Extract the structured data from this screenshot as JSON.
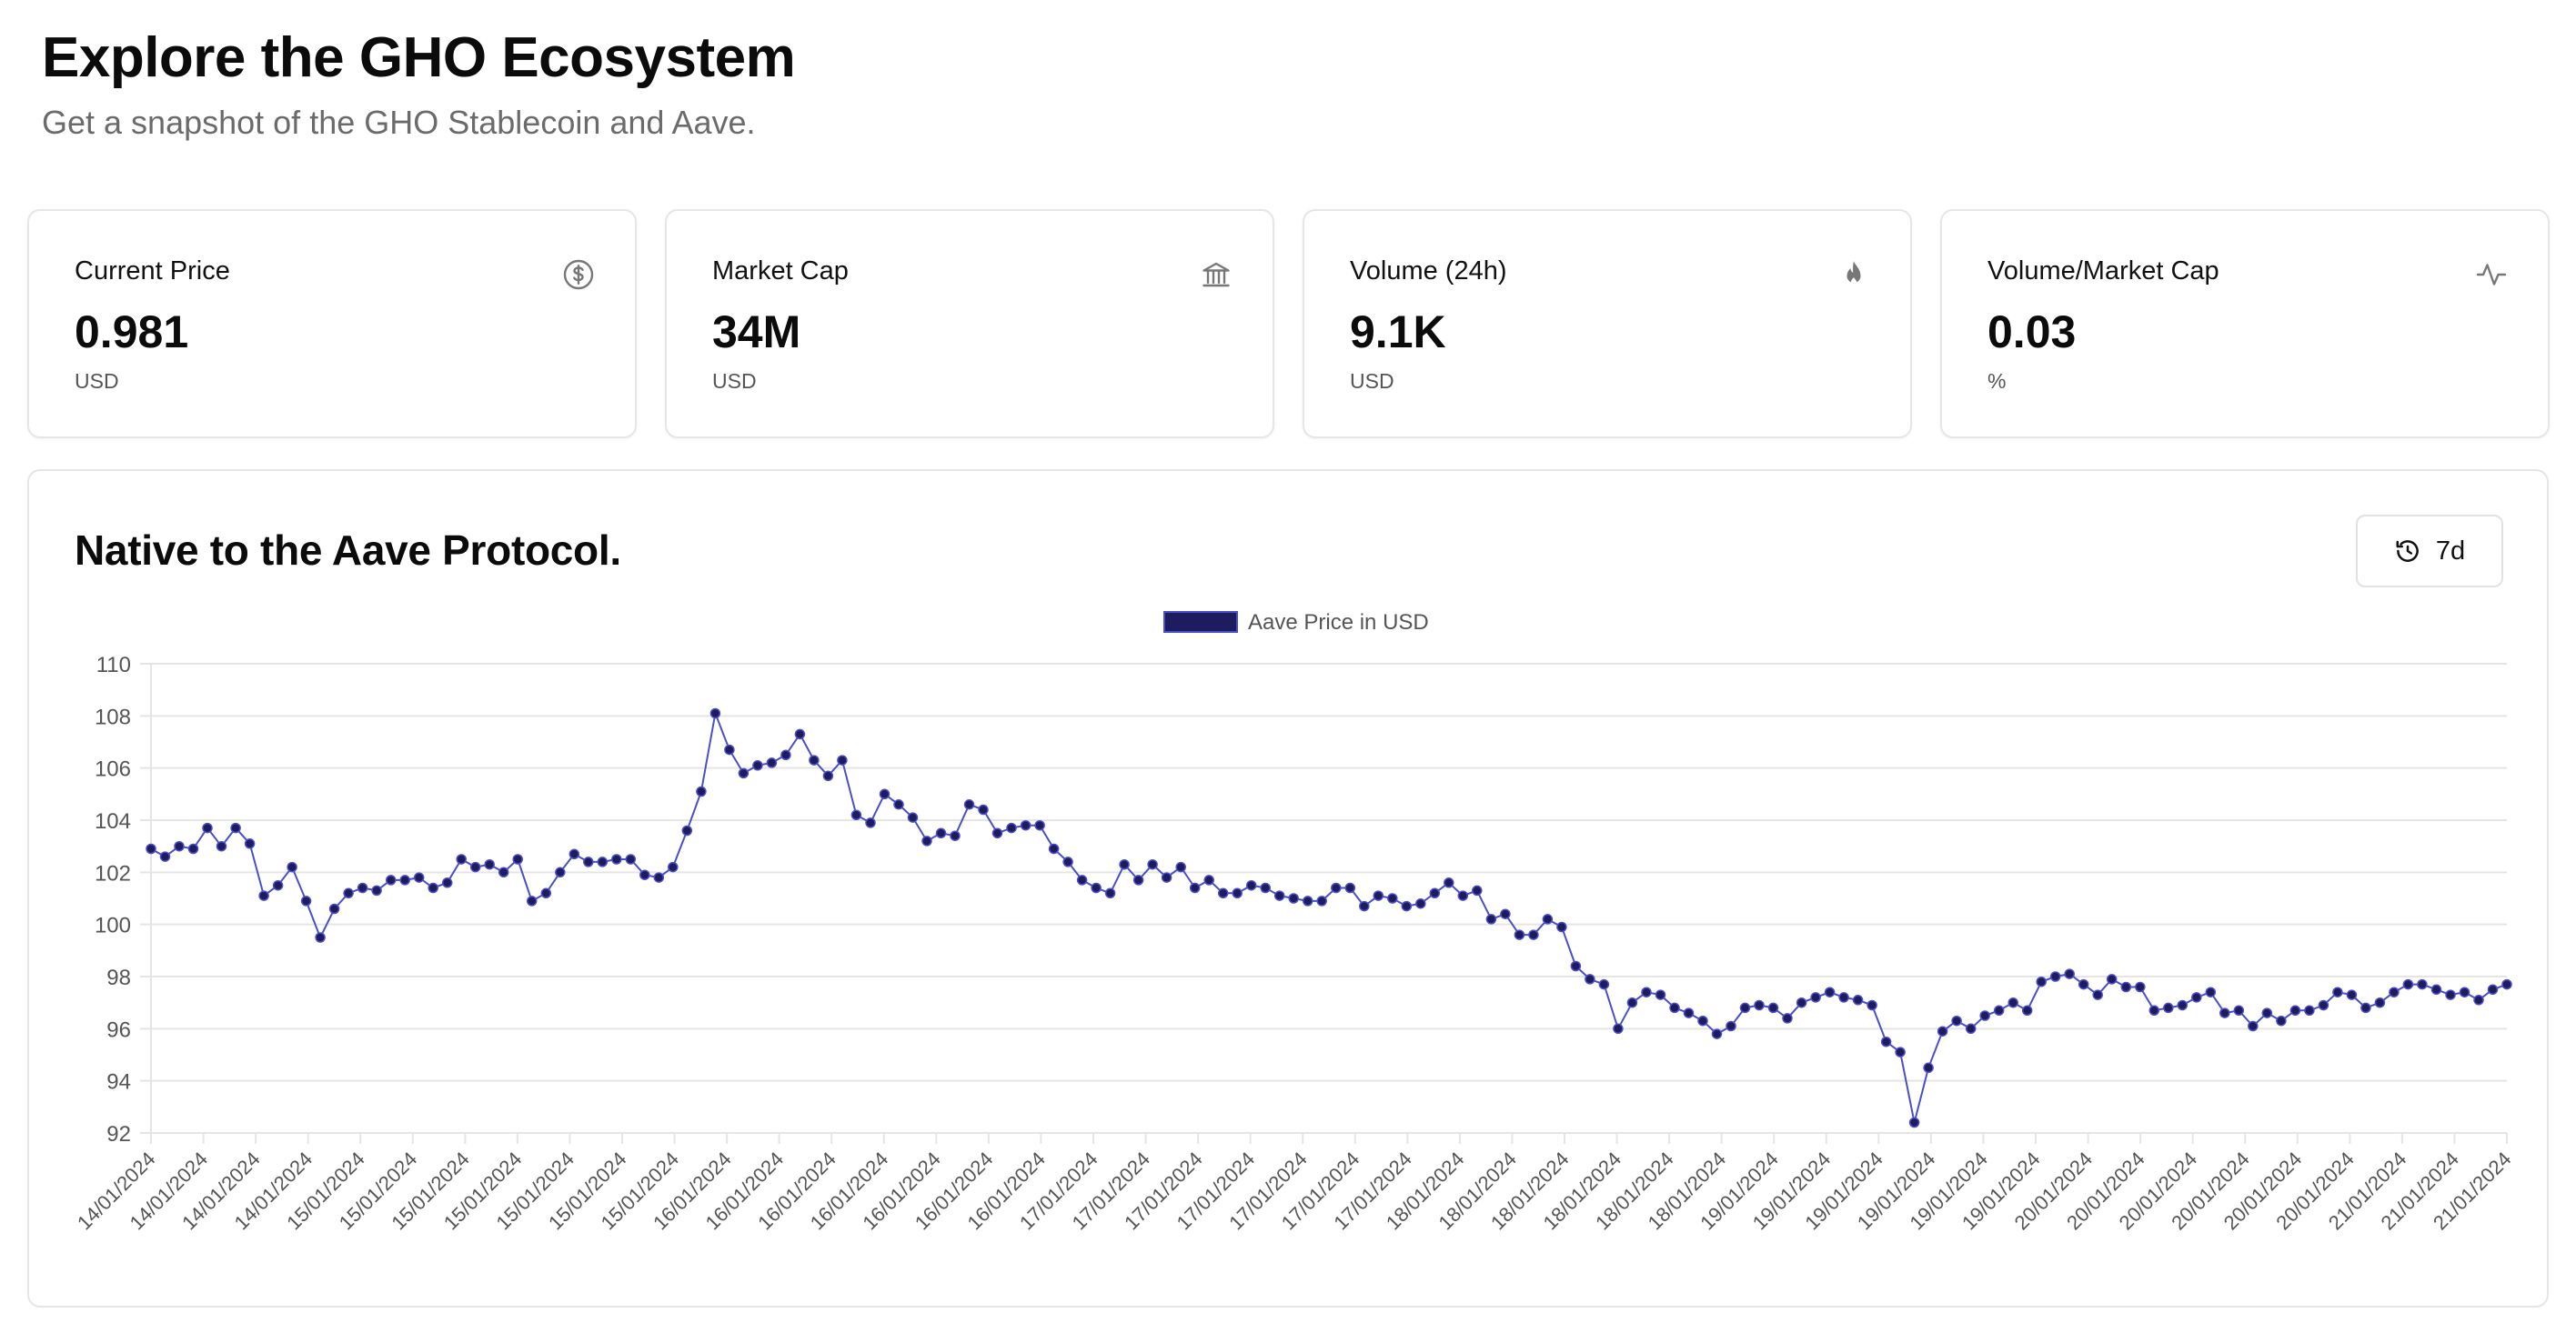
{
  "header": {
    "title": "Explore the GHO Ecosystem",
    "subtitle": "Get a snapshot of the GHO Stablecoin and Aave."
  },
  "stats": [
    {
      "label": "Current Price",
      "value": "0.981",
      "unit": "USD",
      "icon": "dollar-circle-icon"
    },
    {
      "label": "Market Cap",
      "value": "34M",
      "unit": "USD",
      "icon": "bank-icon"
    },
    {
      "label": "Volume (24h)",
      "value": "9.1K",
      "unit": "USD",
      "icon": "flame-icon"
    },
    {
      "label": "Volume/Market Cap",
      "value": "0.03",
      "unit": "%",
      "icon": "activity-icon"
    }
  ],
  "chart_section": {
    "title": "Native to the Aave Protocol.",
    "range_button_label": "7d",
    "range_button_icon": "history-icon"
  },
  "colors": {
    "line": "#4a4fc7",
    "point": "#1e1b5e",
    "legend_fill": "#1e1b5e",
    "grid": "#e5e5e5"
  },
  "chart_data": {
    "type": "line",
    "legend": "Aave Price in USD",
    "legend_position": "top-center",
    "grid": true,
    "ylim": [
      92,
      110
    ],
    "yticks": [
      92,
      94,
      96,
      98,
      100,
      102,
      104,
      106,
      108,
      110
    ],
    "x_tick_labels": [
      "14/01/2024",
      "14/01/2024",
      "14/01/2024",
      "14/01/2024",
      "15/01/2024",
      "15/01/2024",
      "15/01/2024",
      "15/01/2024",
      "15/01/2024",
      "15/01/2024",
      "15/01/2024",
      "16/01/2024",
      "16/01/2024",
      "16/01/2024",
      "16/01/2024",
      "16/01/2024",
      "16/01/2024",
      "16/01/2024",
      "17/01/2024",
      "17/01/2024",
      "17/01/2024",
      "17/01/2024",
      "17/01/2024",
      "17/01/2024",
      "17/01/2024",
      "18/01/2024",
      "18/01/2024",
      "18/01/2024",
      "18/01/2024",
      "18/01/2024",
      "18/01/2024",
      "19/01/2024",
      "19/01/2024",
      "19/01/2024",
      "19/01/2024",
      "19/01/2024",
      "19/01/2024",
      "20/01/2024",
      "20/01/2024",
      "20/01/2024",
      "20/01/2024",
      "20/01/2024",
      "20/01/2024",
      "21/01/2024",
      "21/01/2024",
      "21/01/2024"
    ],
    "series": [
      {
        "name": "Aave Price in USD",
        "values": [
          102.9,
          102.6,
          103.0,
          102.9,
          103.7,
          103.0,
          103.7,
          103.1,
          101.1,
          101.5,
          102.2,
          100.9,
          99.5,
          100.6,
          101.2,
          101.4,
          101.3,
          101.7,
          101.7,
          101.8,
          101.4,
          101.6,
          102.5,
          102.2,
          102.3,
          102.0,
          102.5,
          100.9,
          101.2,
          102.0,
          102.7,
          102.4,
          102.4,
          102.5,
          102.5,
          101.9,
          101.8,
          102.2,
          103.6,
          105.1,
          108.1,
          106.7,
          105.8,
          106.1,
          106.2,
          106.5,
          107.3,
          106.3,
          105.7,
          106.3,
          104.2,
          103.9,
          105.0,
          104.6,
          104.1,
          103.2,
          103.5,
          103.4,
          104.6,
          104.4,
          103.5,
          103.7,
          103.8,
          103.8,
          102.9,
          102.4,
          101.7,
          101.4,
          101.2,
          102.3,
          101.7,
          102.3,
          101.8,
          102.2,
          101.4,
          101.7,
          101.2,
          101.2,
          101.5,
          101.4,
          101.1,
          101.0,
          100.9,
          100.9,
          101.4,
          101.4,
          100.7,
          101.1,
          101.0,
          100.7,
          100.8,
          101.2,
          101.6,
          101.1,
          101.3,
          100.2,
          100.4,
          99.6,
          99.6,
          100.2,
          99.9,
          98.4,
          97.9,
          97.7,
          96.0,
          97.0,
          97.4,
          97.3,
          96.8,
          96.6,
          96.3,
          95.8,
          96.1,
          96.8,
          96.9,
          96.8,
          96.4,
          97.0,
          97.2,
          97.4,
          97.2,
          97.1,
          96.9,
          95.5,
          95.1,
          92.4,
          94.5,
          95.9,
          96.3,
          96.0,
          96.5,
          96.7,
          97.0,
          96.7,
          97.8,
          98.0,
          98.1,
          97.7,
          97.3,
          97.9,
          97.6,
          97.6,
          96.7,
          96.8,
          96.9,
          97.2,
          97.4,
          96.6,
          96.7,
          96.1,
          96.6,
          96.3,
          96.7,
          96.7,
          96.9,
          97.4,
          97.3,
          96.8,
          97.0,
          97.4,
          97.7,
          97.7,
          97.5,
          97.3,
          97.4,
          97.1,
          97.5,
          97.7
        ]
      }
    ]
  }
}
